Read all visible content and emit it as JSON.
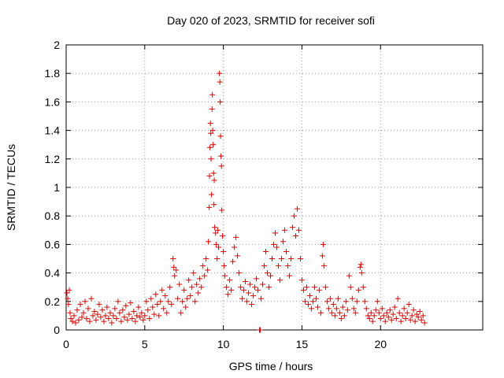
{
  "chart_data": {
    "type": "scatter",
    "title": "Day 020 of 2023, SRMTID for receiver sofi",
    "xlabel": "GPS time / hours",
    "ylabel": "SRMTID / TECUs",
    "xlim": [
      0,
      26.5
    ],
    "ylim": [
      0,
      2
    ],
    "xticks": [
      0,
      5,
      10,
      15,
      20
    ],
    "xtick_labels": [
      "0",
      "5",
      "10",
      "15",
      "20"
    ],
    "yticks": [
      0,
      0.2,
      0.4,
      0.6,
      0.8,
      1,
      1.2,
      1.4,
      1.6,
      1.8,
      2
    ],
    "ytick_labels": [
      "0",
      "0.2",
      "0.4",
      "0.6",
      "0.8",
      "1",
      "1.2",
      "1.4",
      "1.6",
      "1.8",
      "2"
    ],
    "grid": true,
    "marker": "+",
    "color": "#e00000",
    "series": [
      {
        "name": "SRMTID",
        "points": [
          [
            0.05,
            0.26
          ],
          [
            0.1,
            0.22
          ],
          [
            0.15,
            0.18
          ],
          [
            0.2,
            0.28
          ],
          [
            0.25,
            0.12
          ],
          [
            0.3,
            0.08
          ],
          [
            0.4,
            0.06
          ],
          [
            0.5,
            0.1
          ],
          [
            0.6,
            0.05
          ],
          [
            0.7,
            0.14
          ],
          [
            0.8,
            0.07
          ],
          [
            0.9,
            0.18
          ],
          [
            1.0,
            0.09
          ],
          [
            1.1,
            0.12
          ],
          [
            1.2,
            0.2
          ],
          [
            1.3,
            0.08
          ],
          [
            1.4,
            0.15
          ],
          [
            1.5,
            0.06
          ],
          [
            1.6,
            0.22
          ],
          [
            1.7,
            0.1
          ],
          [
            1.8,
            0.13
          ],
          [
            1.9,
            0.07
          ],
          [
            2.0,
            0.11
          ],
          [
            2.1,
            0.18
          ],
          [
            2.2,
            0.09
          ],
          [
            2.3,
            0.14
          ],
          [
            2.4,
            0.06
          ],
          [
            2.5,
            0.1
          ],
          [
            2.6,
            0.16
          ],
          [
            2.7,
            0.08
          ],
          [
            2.8,
            0.12
          ],
          [
            2.9,
            0.05
          ],
          [
            3.0,
            0.1
          ],
          [
            3.1,
            0.15
          ],
          [
            3.2,
            0.08
          ],
          [
            3.3,
            0.2
          ],
          [
            3.4,
            0.12
          ],
          [
            3.5,
            0.06
          ],
          [
            3.6,
            0.14
          ],
          [
            3.7,
            0.09
          ],
          [
            3.8,
            0.17
          ],
          [
            3.9,
            0.07
          ],
          [
            4.0,
            0.11
          ],
          [
            4.1,
            0.19
          ],
          [
            4.2,
            0.08
          ],
          [
            4.3,
            0.13
          ],
          [
            4.4,
            0.06
          ],
          [
            4.5,
            0.1
          ],
          [
            4.6,
            0.16
          ],
          [
            4.7,
            0.09
          ],
          [
            4.8,
            0.12
          ],
          [
            4.9,
            0.07
          ],
          [
            5.0,
            0.1
          ],
          [
            5.1,
            0.2
          ],
          [
            5.2,
            0.14
          ],
          [
            5.3,
            0.08
          ],
          [
            5.4,
            0.22
          ],
          [
            5.5,
            0.16
          ],
          [
            5.6,
            0.11
          ],
          [
            5.7,
            0.25
          ],
          [
            5.8,
            0.18
          ],
          [
            5.9,
            0.1
          ],
          [
            6.0,
            0.2
          ],
          [
            6.1,
            0.28
          ],
          [
            6.2,
            0.15
          ],
          [
            6.3,
            0.24
          ],
          [
            6.4,
            0.12
          ],
          [
            6.5,
            0.2
          ],
          [
            6.6,
            0.3
          ],
          [
            6.7,
            0.18
          ],
          [
            6.8,
            0.5
          ],
          [
            6.85,
            0.44
          ],
          [
            6.9,
            0.38
          ],
          [
            7.0,
            0.42
          ],
          [
            7.1,
            0.22
          ],
          [
            7.2,
            0.32
          ],
          [
            7.3,
            0.12
          ],
          [
            7.4,
            0.2
          ],
          [
            7.5,
            0.28
          ],
          [
            7.6,
            0.16
          ],
          [
            7.7,
            0.22
          ],
          [
            7.8,
            0.35
          ],
          [
            7.9,
            0.24
          ],
          [
            8.0,
            0.3
          ],
          [
            8.1,
            0.4
          ],
          [
            8.2,
            0.2
          ],
          [
            8.3,
            0.32
          ],
          [
            8.4,
            0.26
          ],
          [
            8.5,
            0.36
          ],
          [
            8.6,
            0.3
          ],
          [
            8.7,
            0.45
          ],
          [
            8.8,
            0.38
          ],
          [
            8.9,
            0.5
          ],
          [
            9.0,
            0.42
          ],
          [
            9.05,
            0.62
          ],
          [
            9.1,
            0.86
          ],
          [
            9.12,
            1.08
          ],
          [
            9.15,
            1.28
          ],
          [
            9.18,
            1.45
          ],
          [
            9.2,
            1.38
          ],
          [
            9.22,
            1.2
          ],
          [
            9.25,
            0.95
          ],
          [
            9.28,
            1.55
          ],
          [
            9.3,
            1.65
          ],
          [
            9.32,
            1.4
          ],
          [
            9.35,
            1.3
          ],
          [
            9.38,
            1.1
          ],
          [
            9.4,
            0.88
          ],
          [
            9.42,
            1.05
          ],
          [
            9.45,
            0.72
          ],
          [
            9.5,
            0.68
          ],
          [
            9.55,
            0.6
          ],
          [
            9.6,
            0.5
          ],
          [
            9.65,
            0.7
          ],
          [
            9.7,
            0.58
          ],
          [
            9.75,
            1.8
          ],
          [
            9.78,
            1.74
          ],
          [
            9.8,
            1.6
          ],
          [
            9.82,
            1.36
          ],
          [
            9.85,
            1.22
          ],
          [
            9.88,
            1.15
          ],
          [
            9.9,
            0.84
          ],
          [
            9.95,
            0.66
          ],
          [
            10.0,
            0.55
          ],
          [
            10.05,
            0.45
          ],
          [
            10.1,
            0.38
          ],
          [
            10.2,
            0.3
          ],
          [
            10.3,
            0.25
          ],
          [
            10.4,
            0.35
          ],
          [
            10.5,
            0.28
          ],
          [
            10.6,
            0.48
          ],
          [
            10.7,
            0.58
          ],
          [
            10.8,
            0.65
          ],
          [
            10.9,
            0.52
          ],
          [
            11.0,
            0.4
          ],
          [
            11.1,
            0.3
          ],
          [
            11.2,
            0.22
          ],
          [
            11.3,
            0.28
          ],
          [
            11.4,
            0.34
          ],
          [
            11.5,
            0.2
          ],
          [
            11.6,
            0.26
          ],
          [
            11.7,
            0.32
          ],
          [
            11.8,
            0.18
          ],
          [
            11.9,
            0.24
          ],
          [
            12.0,
            0.3
          ],
          [
            12.1,
            0.36
          ],
          [
            12.2,
            0.28
          ],
          [
            12.3,
            0.0
          ],
          [
            12.35,
            0.0
          ],
          [
            12.4,
            0.22
          ],
          [
            12.5,
            0.32
          ],
          [
            12.6,
            0.45
          ],
          [
            12.7,
            0.55
          ],
          [
            12.8,
            0.4
          ],
          [
            12.9,
            0.3
          ],
          [
            13.0,
            0.38
          ],
          [
            13.1,
            0.5
          ],
          [
            13.2,
            0.6
          ],
          [
            13.3,
            0.68
          ],
          [
            13.4,
            0.58
          ],
          [
            13.5,
            0.45
          ],
          [
            13.6,
            0.35
          ],
          [
            13.7,
            0.5
          ],
          [
            13.8,
            0.62
          ],
          [
            13.9,
            0.7
          ],
          [
            14.0,
            0.55
          ],
          [
            14.1,
            0.45
          ],
          [
            14.2,
            0.38
          ],
          [
            14.3,
            0.5
          ],
          [
            14.4,
            0.72
          ],
          [
            14.5,
            0.8
          ],
          [
            14.6,
            0.66
          ],
          [
            14.7,
            0.85
          ],
          [
            14.8,
            0.7
          ],
          [
            14.9,
            0.5
          ],
          [
            15.0,
            0.35
          ],
          [
            15.1,
            0.28
          ],
          [
            15.2,
            0.2
          ],
          [
            15.3,
            0.3
          ],
          [
            15.4,
            0.18
          ],
          [
            15.5,
            0.24
          ],
          [
            15.6,
            0.15
          ],
          [
            15.7,
            0.2
          ],
          [
            15.8,
            0.3
          ],
          [
            15.9,
            0.22
          ],
          [
            16.0,
            0.16
          ],
          [
            16.1,
            0.28
          ],
          [
            16.2,
            0.12
          ],
          [
            16.3,
            0.52
          ],
          [
            16.35,
            0.6
          ],
          [
            16.4,
            0.45
          ],
          [
            16.5,
            0.3
          ],
          [
            16.6,
            0.2
          ],
          [
            16.7,
            0.15
          ],
          [
            16.8,
            0.22
          ],
          [
            16.9,
            0.12
          ],
          [
            17.0,
            0.18
          ],
          [
            17.1,
            0.1
          ],
          [
            17.2,
            0.15
          ],
          [
            17.3,
            0.22
          ],
          [
            17.4,
            0.12
          ],
          [
            17.5,
            0.08
          ],
          [
            17.6,
            0.16
          ],
          [
            17.7,
            0.1
          ],
          [
            17.8,
            0.2
          ],
          [
            17.9,
            0.14
          ],
          [
            18.0,
            0.38
          ],
          [
            18.1,
            0.3
          ],
          [
            18.2,
            0.22
          ],
          [
            18.3,
            0.15
          ],
          [
            18.4,
            0.12
          ],
          [
            18.5,
            0.2
          ],
          [
            18.6,
            0.28
          ],
          [
            18.7,
            0.44
          ],
          [
            18.75,
            0.46
          ],
          [
            18.8,
            0.4
          ],
          [
            18.9,
            0.3
          ],
          [
            19.0,
            0.2
          ],
          [
            19.1,
            0.15
          ],
          [
            19.2,
            0.1
          ],
          [
            19.3,
            0.08
          ],
          [
            19.4,
            0.12
          ],
          [
            19.5,
            0.06
          ],
          [
            19.6,
            0.1
          ],
          [
            19.7,
            0.14
          ],
          [
            19.8,
            0.2
          ],
          [
            19.9,
            0.12
          ],
          [
            20.0,
            0.08
          ],
          [
            20.1,
            0.15
          ],
          [
            20.2,
            0.1
          ],
          [
            20.3,
            0.06
          ],
          [
            20.4,
            0.12
          ],
          [
            20.5,
            0.09
          ],
          [
            20.6,
            0.14
          ],
          [
            20.7,
            0.07
          ],
          [
            20.8,
            0.11
          ],
          [
            20.9,
            0.16
          ],
          [
            21.0,
            0.08
          ],
          [
            21.1,
            0.22
          ],
          [
            21.2,
            0.12
          ],
          [
            21.3,
            0.06
          ],
          [
            21.4,
            0.1
          ],
          [
            21.5,
            0.15
          ],
          [
            21.6,
            0.08
          ],
          [
            21.7,
            0.12
          ],
          [
            21.8,
            0.18
          ],
          [
            21.9,
            0.07
          ],
          [
            22.0,
            0.1
          ],
          [
            22.1,
            0.14
          ],
          [
            22.2,
            0.06
          ],
          [
            22.3,
            0.11
          ],
          [
            22.4,
            0.09
          ],
          [
            22.5,
            0.13
          ],
          [
            22.6,
            0.07
          ],
          [
            22.7,
            0.1
          ],
          [
            22.8,
            0.05
          ]
        ]
      }
    ]
  }
}
